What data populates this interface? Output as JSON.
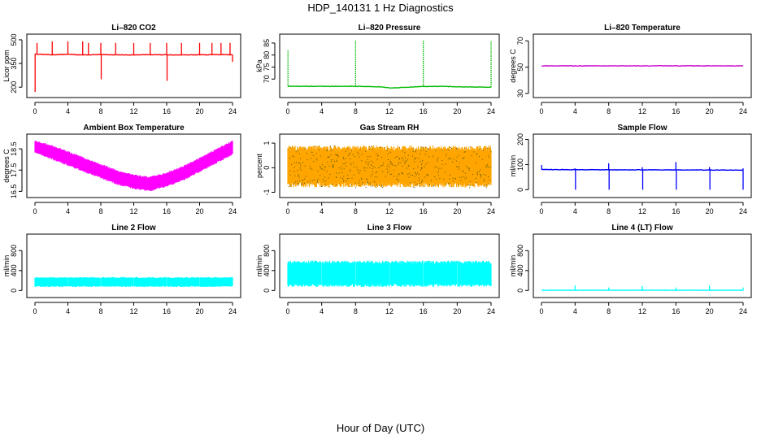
{
  "figure": {
    "title": "HDP_140131  1 Hz Diagnostics",
    "xlabel": "Hour of Day (UTC)"
  },
  "chart_data": [
    {
      "type": "line",
      "title": "Li–820 CO2",
      "ylabel": "Licor ppm",
      "color": "#ff0000",
      "xlim": [
        0,
        24
      ],
      "x_ticks": [
        0,
        4,
        8,
        12,
        16,
        20,
        24
      ],
      "y_ticks": [
        200,
        350,
        500
      ],
      "ylim": [
        160,
        510
      ],
      "baseline": [
        [
          0,
          410
        ],
        [
          2,
          405
        ],
        [
          4,
          408
        ],
        [
          6,
          404
        ],
        [
          8,
          406
        ],
        [
          10,
          405
        ],
        [
          12,
          404
        ],
        [
          14,
          406
        ],
        [
          16,
          405
        ],
        [
          18,
          404
        ],
        [
          20,
          405
        ],
        [
          22,
          406
        ],
        [
          24,
          405
        ]
      ],
      "spikes": [
        [
          0.02,
          170
        ],
        [
          0.25,
          480
        ],
        [
          2.1,
          490
        ],
        [
          4,
          490
        ],
        [
          5.8,
          490
        ],
        [
          6.5,
          480
        ],
        [
          8,
          480
        ],
        [
          8.05,
          250
        ],
        [
          9.8,
          480
        ],
        [
          12,
          480
        ],
        [
          14,
          480
        ],
        [
          16,
          480
        ],
        [
          16.05,
          240
        ],
        [
          17.8,
          480
        ],
        [
          20,
          480
        ],
        [
          21.5,
          480
        ],
        [
          22.6,
          480
        ],
        [
          23.7,
          480
        ],
        [
          24,
          360
        ]
      ]
    },
    {
      "type": "line",
      "title": "Li–820 Pressure",
      "ylabel": "kPa",
      "color": "#00bb00",
      "xlim": [
        0,
        24
      ],
      "x_ticks": [
        0,
        4,
        8,
        12,
        16,
        20,
        24
      ],
      "y_ticks": [
        70,
        75,
        80,
        85
      ],
      "ylim": [
        64,
        87
      ],
      "baseline": [
        [
          0,
          67
        ],
        [
          4,
          67
        ],
        [
          8,
          67
        ],
        [
          11,
          66.8
        ],
        [
          12,
          66.3
        ],
        [
          14,
          66.6
        ],
        [
          16,
          66.9
        ],
        [
          18,
          67
        ],
        [
          20,
          66.8
        ],
        [
          24,
          66.6
        ]
      ],
      "spikes": [
        [
          0.02,
          82
        ],
        [
          8,
          86
        ],
        [
          16,
          86
        ],
        [
          24,
          86
        ]
      ]
    },
    {
      "type": "line",
      "title": "Li–820 Temperature",
      "ylabel": "degrees C",
      "color": "#cc00cc",
      "xlim": [
        0,
        24
      ],
      "x_ticks": [
        0,
        4,
        8,
        12,
        16,
        20,
        24
      ],
      "y_ticks": [
        30,
        50,
        70
      ],
      "ylim": [
        30,
        72
      ],
      "baseline": [
        [
          0,
          51
        ],
        [
          24,
          51
        ]
      ],
      "spikes": []
    },
    {
      "type": "area",
      "title": "Ambient Box Temperature",
      "ylabel": "degrees C",
      "color": "#ff00ff",
      "xlim": [
        0,
        24
      ],
      "x_ticks": [
        0,
        4,
        8,
        12,
        16,
        20,
        24
      ],
      "y_ticks": [
        16.5,
        17.5,
        18.5
      ],
      "ylim": [
        16.4,
        19.0
      ],
      "upper": [
        [
          0,
          18.9
        ],
        [
          2,
          18.7
        ],
        [
          4,
          18.4
        ],
        [
          6,
          18.1
        ],
        [
          8,
          17.8
        ],
        [
          10,
          17.5
        ],
        [
          12,
          17.3
        ],
        [
          14,
          17.2
        ],
        [
          16,
          17.4
        ],
        [
          18,
          17.7
        ],
        [
          20,
          18.1
        ],
        [
          22,
          18.5
        ],
        [
          24,
          18.9
        ]
      ],
      "lower": [
        [
          0,
          18.3
        ],
        [
          2,
          18.0
        ],
        [
          4,
          17.7
        ],
        [
          6,
          17.4
        ],
        [
          8,
          17.1
        ],
        [
          10,
          16.8
        ],
        [
          12,
          16.6
        ],
        [
          14,
          16.5
        ],
        [
          16,
          16.7
        ],
        [
          18,
          17.0
        ],
        [
          20,
          17.4
        ],
        [
          22,
          17.8
        ],
        [
          24,
          18.2
        ]
      ]
    },
    {
      "type": "area",
      "title": "Gas Stream RH",
      "ylabel": "percent",
      "color": "#ffa500",
      "xlim": [
        0,
        24
      ],
      "x_ticks": [
        0,
        4,
        8,
        12,
        16,
        20,
        24
      ],
      "y_ticks": [
        -1.0,
        0.0,
        1.0
      ],
      "ylim": [
        -1.05,
        1.2
      ],
      "upper": [
        [
          0,
          0.9
        ],
        [
          24,
          0.9
        ]
      ],
      "lower": [
        [
          0,
          -0.8
        ],
        [
          24,
          -0.8
        ]
      ]
    },
    {
      "type": "line",
      "title": "Sample Flow",
      "ylabel": "ml/min",
      "color": "#0000ff",
      "xlim": [
        0,
        24
      ],
      "x_ticks": [
        0,
        4,
        8,
        12,
        16,
        20,
        24
      ],
      "y_ticks": [
        0,
        100,
        200
      ],
      "ylim": [
        -15,
        205
      ],
      "baseline": [
        [
          0,
          80
        ],
        [
          24,
          78
        ]
      ],
      "spikes": [
        [
          0.02,
          98
        ],
        [
          4,
          85
        ],
        [
          4.05,
          0
        ],
        [
          8,
          105
        ],
        [
          8.05,
          0
        ],
        [
          12,
          90
        ],
        [
          12.05,
          0
        ],
        [
          16,
          110
        ],
        [
          16.05,
          0
        ],
        [
          20,
          90
        ],
        [
          20.05,
          0
        ],
        [
          24,
          85
        ],
        [
          24,
          0
        ]
      ]
    },
    {
      "type": "area",
      "title": "Line 2 Flow",
      "ylabel": "ml/min",
      "color": "#00ffff",
      "xlim": [
        0,
        24
      ],
      "x_ticks": [
        0,
        4,
        8,
        12,
        16,
        20,
        24
      ],
      "y_ticks": [
        0,
        400,
        800
      ],
      "ylim": [
        -60,
        1050
      ],
      "upper": [
        [
          0,
          270
        ],
        [
          24,
          270
        ]
      ],
      "lower": [
        [
          0,
          70
        ],
        [
          24,
          70
        ]
      ],
      "gaps": [
        4,
        8,
        12,
        16,
        20
      ]
    },
    {
      "type": "area",
      "title": "Line 3 Flow",
      "ylabel": "ml/min",
      "color": "#00ffff",
      "xlim": [
        0,
        24
      ],
      "x_ticks": [
        0,
        4,
        8,
        12,
        16,
        20,
        24
      ],
      "y_ticks": [
        0,
        400,
        800
      ],
      "ylim": [
        -60,
        1050
      ],
      "upper": [
        [
          0,
          600
        ],
        [
          24,
          600
        ]
      ],
      "lower": [
        [
          0,
          70
        ],
        [
          24,
          70
        ]
      ],
      "gaps": [
        4,
        8,
        12,
        16,
        20
      ]
    },
    {
      "type": "line",
      "title": "Line 4 (LT) Flow",
      "ylabel": "ml/min",
      "color": "#00ffff",
      "xlim": [
        0,
        24
      ],
      "x_ticks": [
        0,
        4,
        8,
        12,
        16,
        20,
        24
      ],
      "y_ticks": [
        0,
        400,
        800
      ],
      "ylim": [
        -60,
        1050
      ],
      "baseline": [
        [
          0,
          5
        ],
        [
          24,
          5
        ]
      ],
      "spikes": [
        [
          4,
          100
        ],
        [
          8,
          60
        ],
        [
          12,
          90
        ],
        [
          16,
          60
        ],
        [
          20,
          100
        ],
        [
          24,
          60
        ]
      ]
    }
  ]
}
